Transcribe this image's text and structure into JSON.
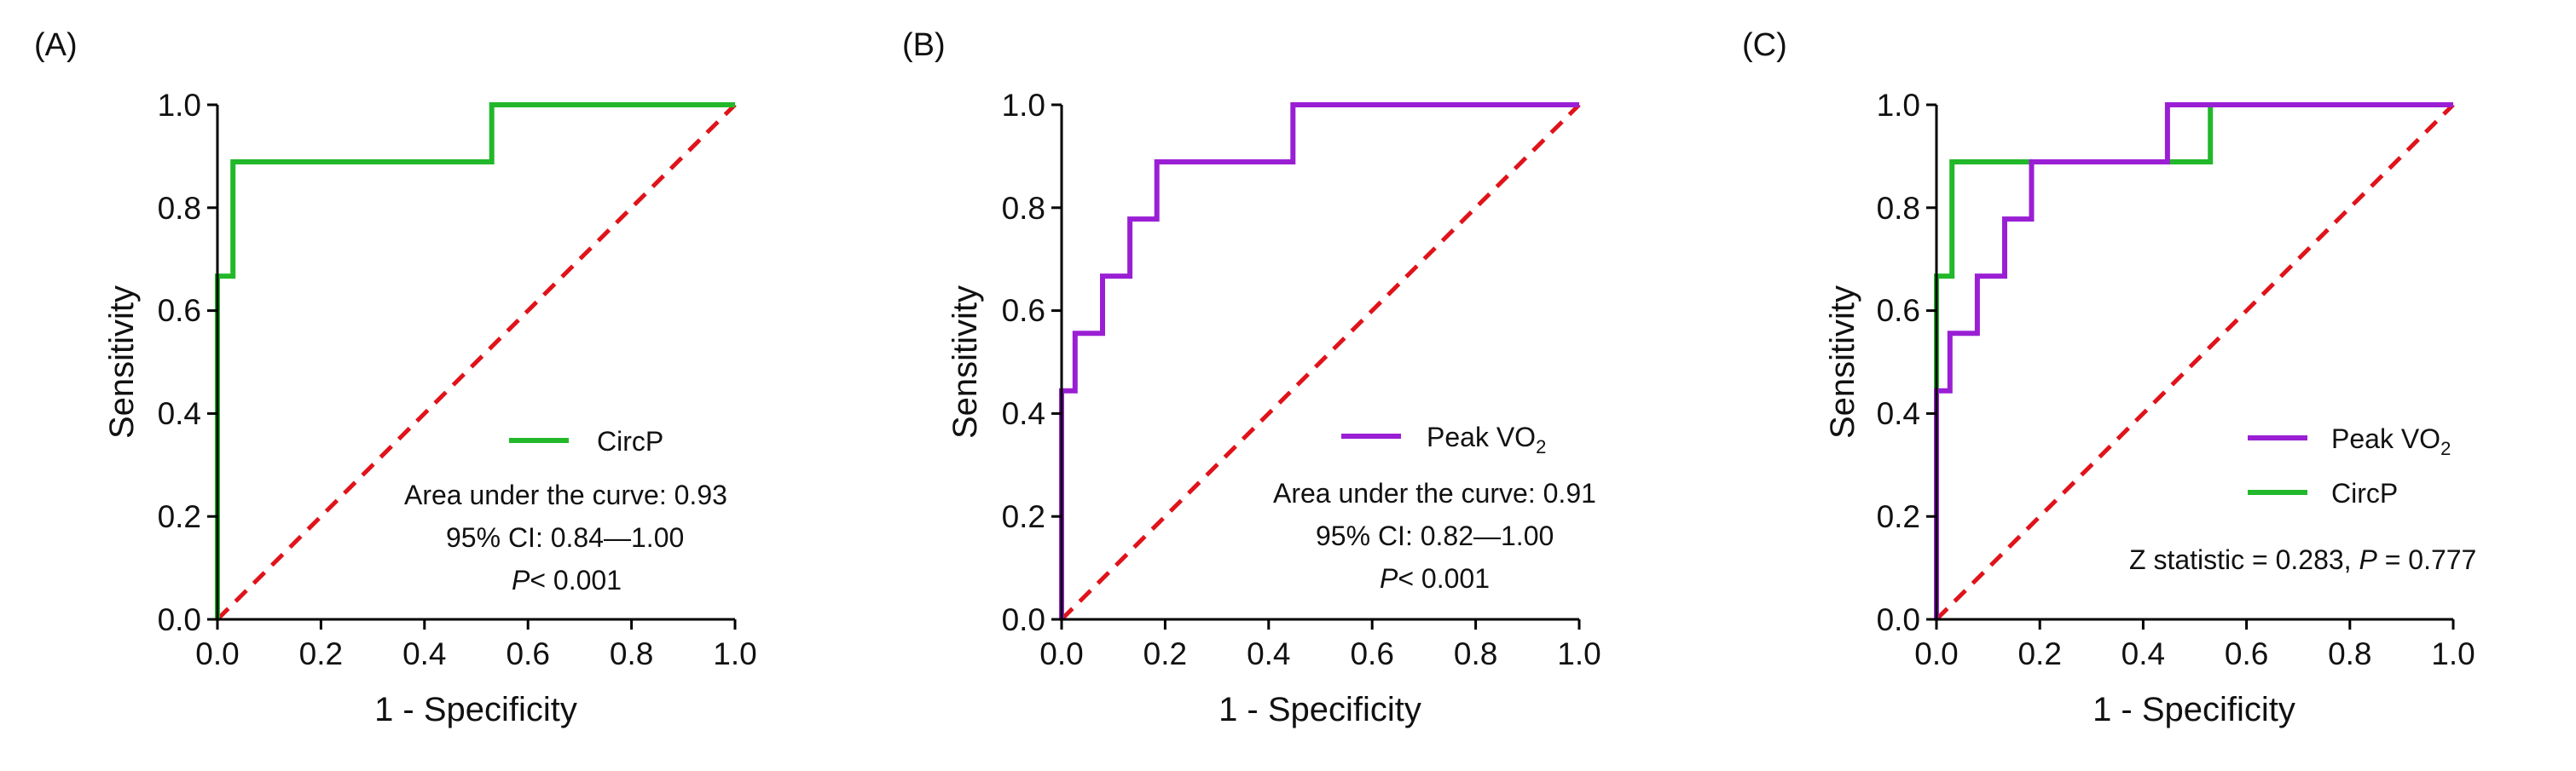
{
  "chart_data": [
    {
      "panel": "(A)",
      "type": "line",
      "title": "",
      "xlabel": "1 - Specificity",
      "ylabel": "Sensitivity",
      "xlim": [
        0,
        1
      ],
      "ylim": [
        0,
        1
      ],
      "xticks": [
        "0.0",
        "0.2",
        "0.4",
        "0.6",
        "0.8",
        "1.0"
      ],
      "yticks": [
        "0.0",
        "0.2",
        "0.4",
        "0.6",
        "0.8",
        "1.0"
      ],
      "reference_line": {
        "x": [
          0,
          1
        ],
        "y": [
          0,
          1
        ],
        "color": "#e0131a",
        "style": "dashed"
      },
      "series": [
        {
          "name": "CircP",
          "color": "#22b82a",
          "x": [
            0,
            0,
            0.03,
            0.03,
            0.53,
            0.53,
            1.0
          ],
          "y": [
            0,
            0.667,
            0.667,
            0.889,
            0.889,
            1.0,
            1.0
          ]
        }
      ],
      "legend": [
        {
          "label": "CircP",
          "color": "#22b82a"
        }
      ],
      "annotations": [
        "Area under the curve: 0.93",
        "95% CI: 0.84—1.00",
        "< 0.001"
      ],
      "p_symbol": "P"
    },
    {
      "panel": "(B)",
      "type": "line",
      "title": "",
      "xlabel": "1 - Specificity",
      "ylabel": "Sensitivity",
      "xlim": [
        0,
        1
      ],
      "ylim": [
        0,
        1
      ],
      "xticks": [
        "0.0",
        "0.2",
        "0.4",
        "0.6",
        "0.8",
        "1.0"
      ],
      "yticks": [
        "0.0",
        "0.2",
        "0.4",
        "0.6",
        "0.8",
        "1.0"
      ],
      "reference_line": {
        "x": [
          0,
          1
        ],
        "y": [
          0,
          1
        ],
        "color": "#e0131a",
        "style": "dashed"
      },
      "series": [
        {
          "name": "Peak VO2",
          "color": "#9a1fd4",
          "x": [
            0,
            0,
            0.026,
            0.026,
            0.079,
            0.079,
            0.132,
            0.132,
            0.184,
            0.184,
            0.447,
            0.447,
            1.0
          ],
          "y": [
            0,
            0.444,
            0.444,
            0.556,
            0.556,
            0.667,
            0.667,
            0.778,
            0.778,
            0.889,
            0.889,
            1.0,
            1.0
          ]
        }
      ],
      "legend": [
        {
          "label_main": "Peak VO",
          "label_sub": "2",
          "color": "#9a1fd4"
        }
      ],
      "annotations": [
        "Area under the curve: 0.91",
        "95% CI: 0.82—1.00",
        "< 0.001"
      ],
      "p_symbol": "P"
    },
    {
      "panel": "(C)",
      "type": "line",
      "title": "",
      "xlabel": "1 - Specificity",
      "ylabel": "Sensitivity",
      "xlim": [
        0,
        1
      ],
      "ylim": [
        0,
        1
      ],
      "xticks": [
        "0.0",
        "0.2",
        "0.4",
        "0.6",
        "0.8",
        "1.0"
      ],
      "yticks": [
        "0.0",
        "0.2",
        "0.4",
        "0.6",
        "0.8",
        "1.0"
      ],
      "reference_line": {
        "x": [
          0,
          1
        ],
        "y": [
          0,
          1
        ],
        "color": "#e0131a",
        "style": "dashed"
      },
      "series": [
        {
          "name": "CircP",
          "color": "#22b82a",
          "x": [
            0,
            0,
            0.03,
            0.03,
            0.53,
            0.53,
            1.0
          ],
          "y": [
            0,
            0.667,
            0.667,
            0.889,
            0.889,
            1.0,
            1.0
          ]
        },
        {
          "name": "Peak VO2",
          "color": "#9a1fd4",
          "x": [
            0,
            0,
            0.026,
            0.026,
            0.079,
            0.079,
            0.132,
            0.132,
            0.184,
            0.184,
            0.447,
            0.447,
            1.0
          ],
          "y": [
            0,
            0.444,
            0.444,
            0.556,
            0.556,
            0.667,
            0.667,
            0.778,
            0.778,
            0.889,
            0.889,
            1.0,
            1.0
          ]
        }
      ],
      "legend": [
        {
          "label_main": "Peak VO",
          "label_sub": "2",
          "color": "#9a1fd4"
        },
        {
          "label": "CircP",
          "color": "#22b82a"
        }
      ],
      "annotations": [
        "Z statistic = 0.283, ",
        " = 0.777"
      ],
      "p_symbol": "P"
    }
  ]
}
